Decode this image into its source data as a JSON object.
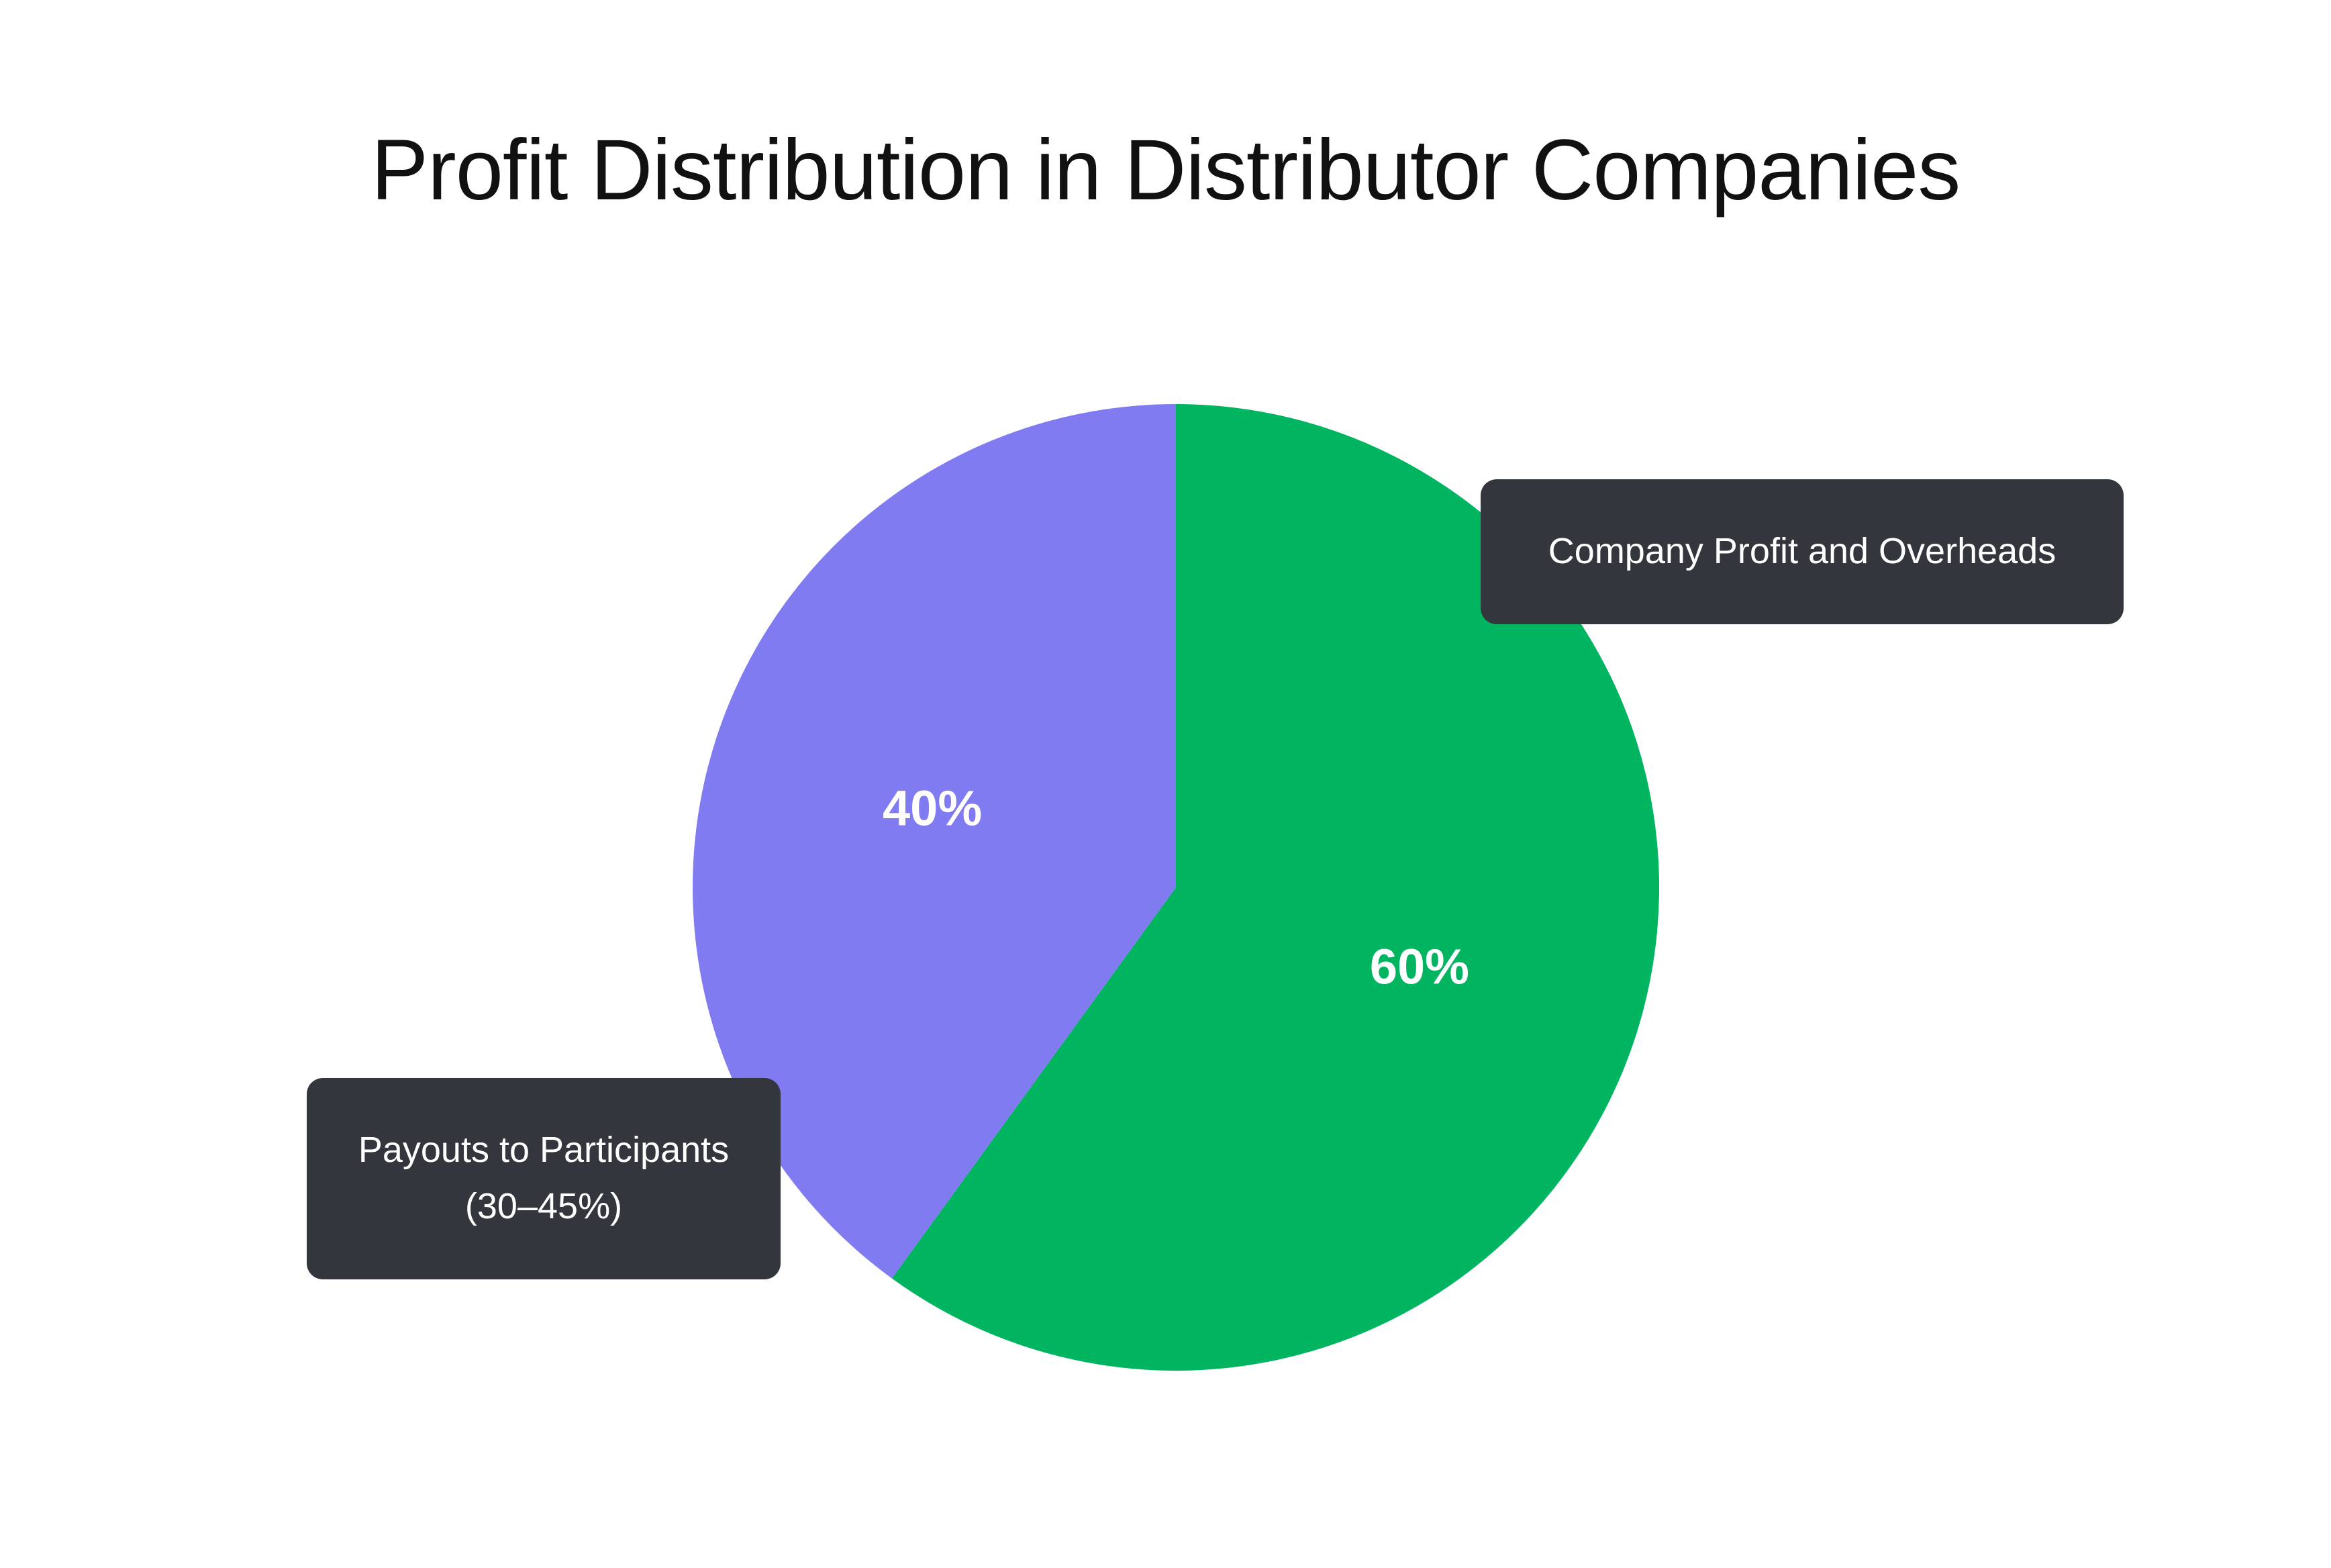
{
  "chart_data": {
    "type": "pie",
    "title": "Profit Distribution in Distributor Companies",
    "slices": [
      {
        "label": "Company Profit and Overheads",
        "value": 60,
        "value_label": "60%",
        "color": "#00b460"
      },
      {
        "label": "Payouts to Participants",
        "sublabel": "(30–45%)",
        "value": 40,
        "value_label": "40%",
        "color": "#817bf2"
      }
    ],
    "callout_color": "#33363c"
  }
}
